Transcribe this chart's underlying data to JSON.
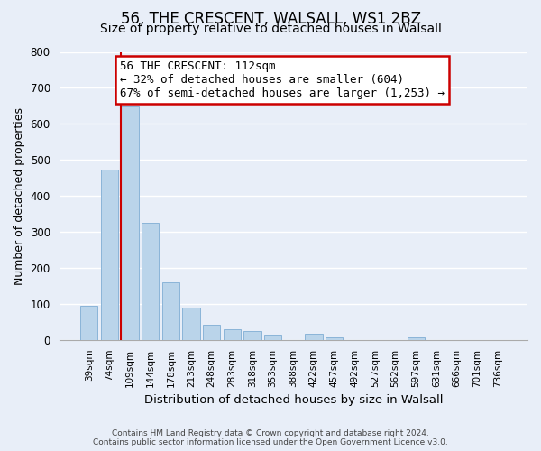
{
  "title": "56, THE CRESCENT, WALSALL, WS1 2BZ",
  "subtitle": "Size of property relative to detached houses in Walsall",
  "xlabel": "Distribution of detached houses by size in Walsall",
  "ylabel": "Number of detached properties",
  "categories": [
    "39sqm",
    "74sqm",
    "109sqm",
    "144sqm",
    "178sqm",
    "213sqm",
    "248sqm",
    "283sqm",
    "318sqm",
    "353sqm",
    "388sqm",
    "422sqm",
    "457sqm",
    "492sqm",
    "527sqm",
    "562sqm",
    "597sqm",
    "631sqm",
    "666sqm",
    "701sqm",
    "736sqm"
  ],
  "values": [
    95,
    472,
    648,
    325,
    160,
    90,
    43,
    29,
    25,
    14,
    0,
    16,
    8,
    0,
    0,
    0,
    7,
    0,
    0,
    0,
    0
  ],
  "bar_color": "#bad4ea",
  "bar_edge_color": "#8ab4d8",
  "vline_x_index": 2,
  "vline_color": "#cc0000",
  "annotation_line1": "56 THE CRESCENT: 112sqm",
  "annotation_line2": "← 32% of detached houses are smaller (604)",
  "annotation_line3": "67% of semi-detached houses are larger (1,253) →",
  "annotation_box_color": "#ffffff",
  "annotation_box_edge": "#cc0000",
  "ylim": [
    0,
    800
  ],
  "yticks": [
    0,
    100,
    200,
    300,
    400,
    500,
    600,
    700,
    800
  ],
  "footer_line1": "Contains HM Land Registry data © Crown copyright and database right 2024.",
  "footer_line2": "Contains public sector information licensed under the Open Government Licence v3.0.",
  "bg_color": "#e8eef8",
  "grid_color": "#ffffff",
  "title_fontsize": 12,
  "subtitle_fontsize": 10,
  "bar_width": 0.85
}
